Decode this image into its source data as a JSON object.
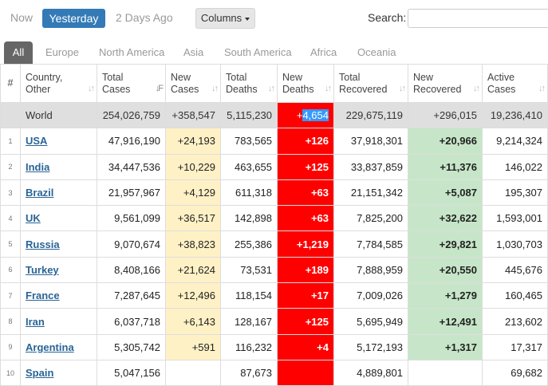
{
  "topbar": {
    "now": "Now",
    "yesterday": "Yesterday",
    "two_days": "2 Days Ago",
    "columns": "Columns",
    "search_label": "Search:",
    "search_value": ""
  },
  "tabs": [
    "All",
    "Europe",
    "North America",
    "Asia",
    "South America",
    "Africa",
    "Oceania"
  ],
  "headers": {
    "num": "#",
    "country": [
      "Country,",
      "Other"
    ],
    "total_cases": [
      "Total",
      "Cases"
    ],
    "new_cases": [
      "New",
      "Cases"
    ],
    "total_deaths": [
      "Total",
      "Deaths"
    ],
    "new_deaths": [
      "New",
      "Deaths"
    ],
    "total_recovered": [
      "Total",
      "Recovered"
    ],
    "new_recovered": [
      "New",
      "Recovered"
    ],
    "active_cases": [
      "Active",
      "Cases"
    ]
  },
  "world": {
    "country": "World",
    "total_cases": "254,026,759",
    "new_cases": "+358,547",
    "total_deaths": "5,115,230",
    "new_deaths_prefix": "+",
    "new_deaths_selected": "4,654",
    "total_recovered": "229,675,119",
    "new_recovered": "+296,015",
    "active_cases": "19,236,410"
  },
  "rows": [
    {
      "num": "1",
      "country": "USA",
      "total_cases": "47,916,190",
      "new_cases": "+24,193",
      "total_deaths": "783,565",
      "new_deaths": "+126",
      "total_recovered": "37,918,301",
      "new_recovered": "+20,966",
      "active_cases": "9,214,324"
    },
    {
      "num": "2",
      "country": "India",
      "total_cases": "34,447,536",
      "new_cases": "+10,229",
      "total_deaths": "463,655",
      "new_deaths": "+125",
      "total_recovered": "33,837,859",
      "new_recovered": "+11,376",
      "active_cases": "146,022"
    },
    {
      "num": "3",
      "country": "Brazil",
      "total_cases": "21,957,967",
      "new_cases": "+4,129",
      "total_deaths": "611,318",
      "new_deaths": "+63",
      "total_recovered": "21,151,342",
      "new_recovered": "+5,087",
      "active_cases": "195,307"
    },
    {
      "num": "4",
      "country": "UK",
      "total_cases": "9,561,099",
      "new_cases": "+36,517",
      "total_deaths": "142,898",
      "new_deaths": "+63",
      "total_recovered": "7,825,200",
      "new_recovered": "+32,622",
      "active_cases": "1,593,001"
    },
    {
      "num": "5",
      "country": "Russia",
      "total_cases": "9,070,674",
      "new_cases": "+38,823",
      "total_deaths": "255,386",
      "new_deaths": "+1,219",
      "total_recovered": "7,784,585",
      "new_recovered": "+29,821",
      "active_cases": "1,030,703"
    },
    {
      "num": "6",
      "country": "Turkey",
      "total_cases": "8,408,166",
      "new_cases": "+21,624",
      "total_deaths": "73,531",
      "new_deaths": "+189",
      "total_recovered": "7,888,959",
      "new_recovered": "+20,550",
      "active_cases": "445,676"
    },
    {
      "num": "7",
      "country": "France",
      "total_cases": "7,287,645",
      "new_cases": "+12,496",
      "total_deaths": "118,154",
      "new_deaths": "+17",
      "total_recovered": "7,009,026",
      "new_recovered": "+1,279",
      "active_cases": "160,465"
    },
    {
      "num": "8",
      "country": "Iran",
      "total_cases": "6,037,718",
      "new_cases": "+6,143",
      "total_deaths": "128,167",
      "new_deaths": "+125",
      "total_recovered": "5,695,949",
      "new_recovered": "+12,491",
      "active_cases": "213,602"
    },
    {
      "num": "9",
      "country": "Argentina",
      "total_cases": "5,305,742",
      "new_cases": "+591",
      "total_deaths": "116,232",
      "new_deaths": "+4",
      "total_recovered": "5,172,193",
      "new_recovered": "+1,317",
      "active_cases": "17,317"
    },
    {
      "num": "10",
      "country": "Spain",
      "total_cases": "5,047,156",
      "new_cases": "",
      "total_deaths": "87,673",
      "new_deaths": "",
      "total_recovered": "4,889,801",
      "new_recovered": "",
      "active_cases": "69,682"
    }
  ]
}
